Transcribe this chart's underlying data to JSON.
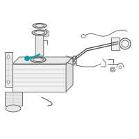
{
  "background_color": "#ffffff",
  "line_color": "#4a4a4a",
  "highlight_color": "#009bb5",
  "lw": 0.55,
  "fig_width": 2.0,
  "fig_height": 2.0,
  "dpi": 100
}
